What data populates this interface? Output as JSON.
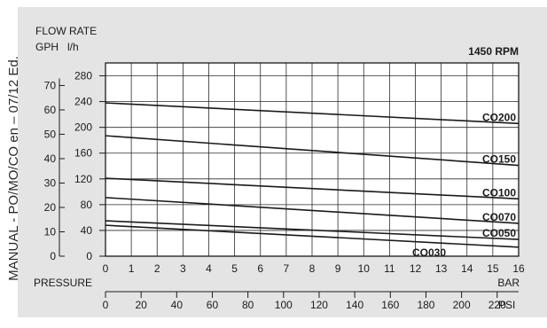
{
  "side_caption": "MANUAL - PO/MO/CO en – 07/12 Ed.",
  "chart_data": {
    "type": "line",
    "title": "FLOW RATE",
    "speed_label": "1450 RPM",
    "left_axes": [
      {
        "unit": "GPH",
        "ticks": [
          0,
          10,
          20,
          30,
          40,
          50,
          60,
          70
        ]
      },
      {
        "unit": "l/h",
        "ticks": [
          0,
          40,
          80,
          120,
          160,
          200,
          240,
          280
        ]
      }
    ],
    "xlabel": "PRESSURE",
    "bottom_axes": [
      {
        "unit": "BAR",
        "ticks": [
          0,
          1,
          2,
          3,
          4,
          5,
          6,
          7,
          8,
          9,
          10,
          11,
          12,
          13,
          14,
          15,
          16
        ]
      },
      {
        "unit": "PSI",
        "ticks": [
          0,
          20,
          40,
          60,
          80,
          100,
          120,
          140,
          160,
          180,
          200,
          220
        ]
      }
    ],
    "x_range_bar": [
      0,
      16
    ],
    "y_range_lh": [
      0,
      300
    ],
    "grid": true,
    "series": [
      {
        "name": "CO200",
        "x": [
          0,
          16
        ],
        "y": [
          238,
          206
        ]
      },
      {
        "name": "CO150",
        "x": [
          0,
          16
        ],
        "y": [
          187,
          141
        ]
      },
      {
        "name": "CO100",
        "x": [
          0,
          16
        ],
        "y": [
          121,
          89
        ]
      },
      {
        "name": "CO070",
        "x": [
          0,
          16
        ],
        "y": [
          91,
          51
        ]
      },
      {
        "name": "CO050",
        "x": [
          0,
          16
        ],
        "y": [
          55,
          26
        ]
      },
      {
        "name": "CO030",
        "x": [
          0,
          16
        ],
        "y": [
          48,
          14
        ]
      }
    ]
  }
}
